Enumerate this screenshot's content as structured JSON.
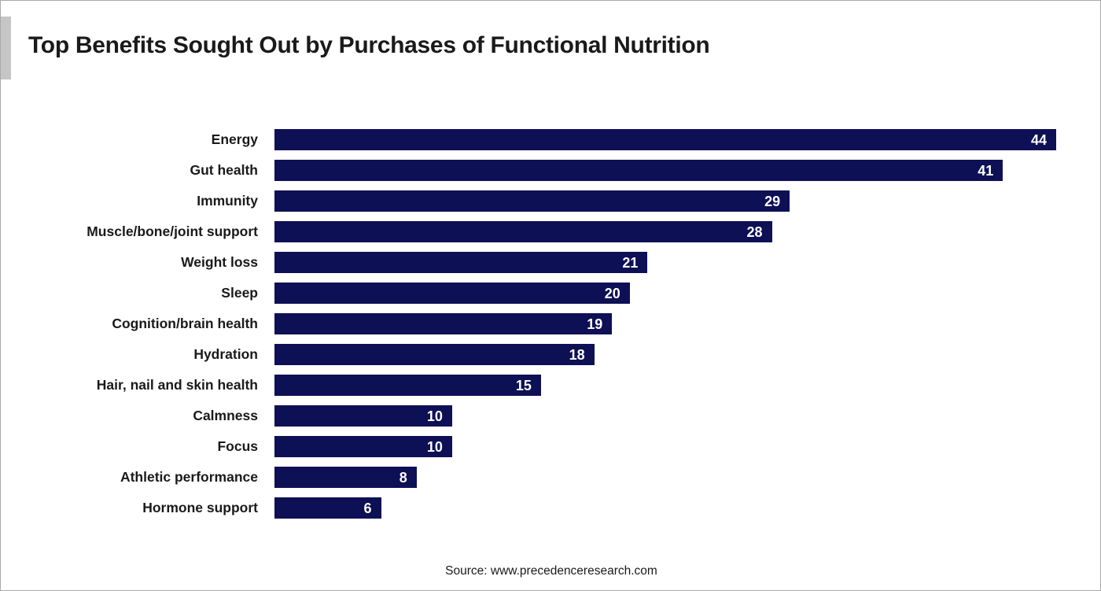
{
  "title": "Top Benefits Sought Out by Purchases of Functional Nutrition",
  "source": "Source: www.precedenceresearch.com",
  "colors": {
    "bar": "#0e1055",
    "title_text": "#1a1a1a",
    "label_text": "#1a1a1a",
    "value_text": "#ffffff",
    "accent_gray": "#c6c6c6",
    "border": "#a9a9a9",
    "background": "#ffffff"
  },
  "chart_data": {
    "type": "bar",
    "orientation": "horizontal",
    "title": "Top Benefits Sought Out by Purchases of Functional Nutrition",
    "categories": [
      "Energy",
      "Gut health",
      "Immunity",
      "Muscle/bone/joint support",
      "Weight loss",
      "Sleep",
      "Cognition/brain health",
      "Hydration",
      "Hair, nail and skin health",
      "Calmness",
      "Focus",
      "Athletic performance",
      "Hormone support"
    ],
    "values": [
      44,
      41,
      29,
      28,
      21,
      20,
      19,
      18,
      15,
      10,
      10,
      8,
      6
    ],
    "xlabel": "",
    "ylabel": "",
    "xlim": [
      0,
      44
    ],
    "grid": false,
    "legend": false,
    "data_labels": "inside-end",
    "sorted": "descending"
  }
}
